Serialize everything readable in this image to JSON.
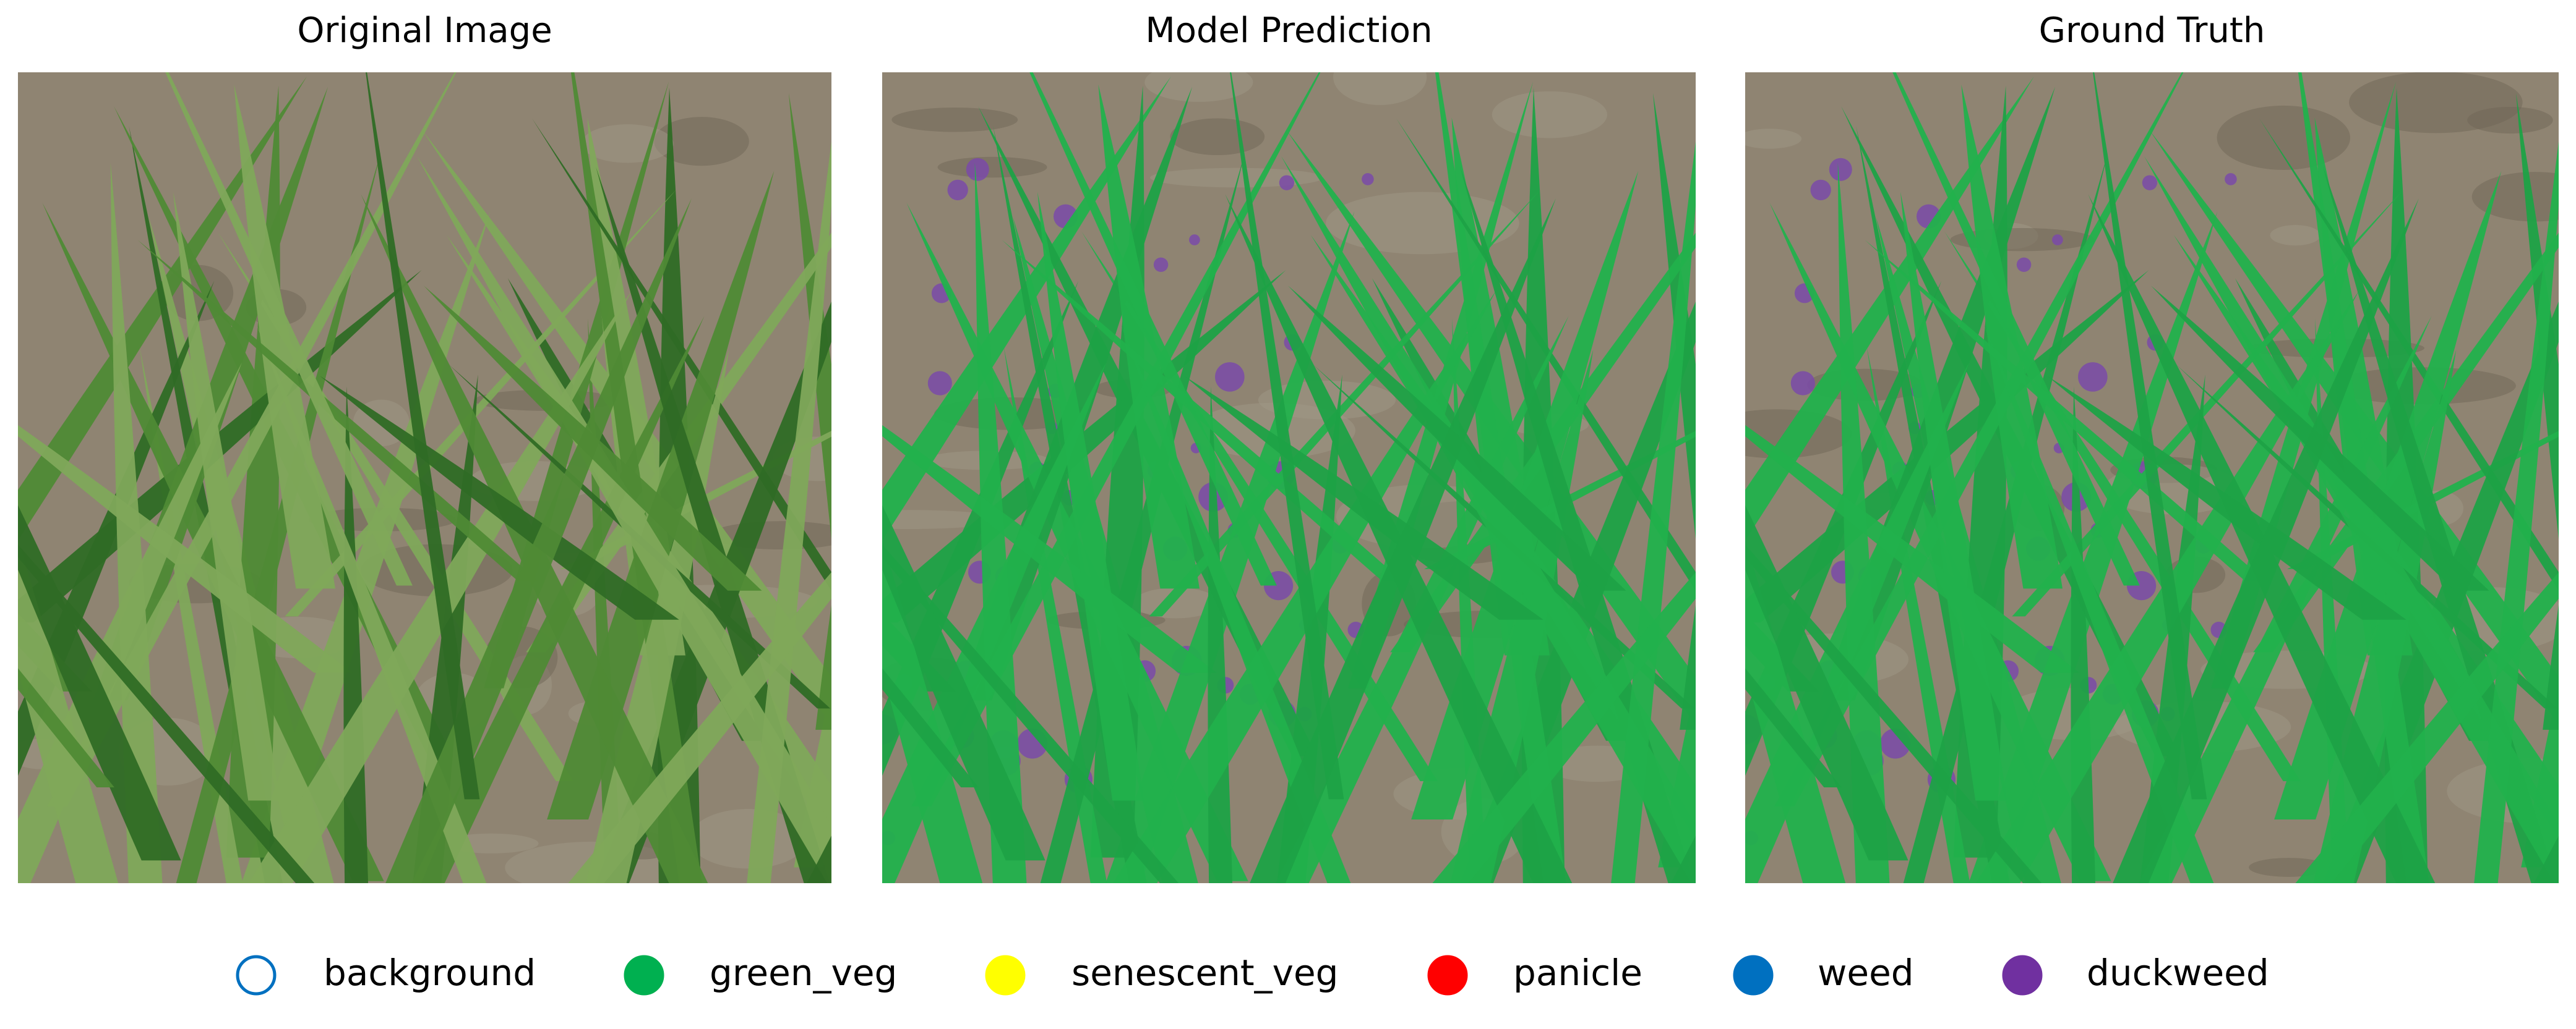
{
  "panels": [
    {
      "title": "Original Image"
    },
    {
      "title": "Model Prediction"
    },
    {
      "title": "Ground Truth"
    }
  ],
  "legend": [
    {
      "label": "background",
      "color": "#0070c0",
      "filled": false
    },
    {
      "label": "green_veg",
      "color": "#00b050",
      "filled": true
    },
    {
      "label": "senescent_veg",
      "color": "#ffff00",
      "filled": true
    },
    {
      "label": "panicle",
      "color": "#ff0000",
      "filled": true
    },
    {
      "label": "weed",
      "color": "#0070c0",
      "filled": true
    },
    {
      "label": "duckweed",
      "color": "#7030a0",
      "filled": true
    }
  ]
}
